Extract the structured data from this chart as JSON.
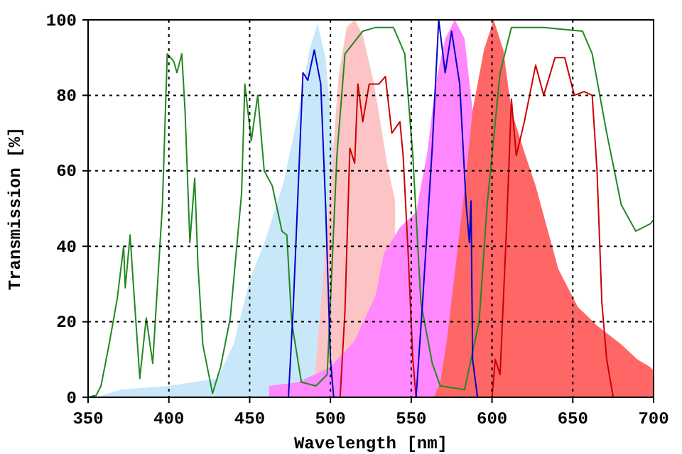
{
  "chart_data": {
    "type": "line",
    "xlabel": "Wavelength [nm]",
    "ylabel": "Transmission [%]",
    "xlim": [
      350,
      700
    ],
    "ylim": [
      0,
      100
    ],
    "xticks": [
      350,
      400,
      450,
      500,
      550,
      600,
      650,
      700
    ],
    "yticks": [
      0,
      20,
      40,
      60,
      80,
      100
    ],
    "grid": true,
    "series": [
      {
        "type": "area",
        "color": "#c8e8fa",
        "x": [
          355,
          370,
          400,
          430,
          440,
          450,
          460,
          471,
          480,
          487,
          492,
          497,
          502
        ],
        "values": [
          0,
          2,
          3,
          5,
          14,
          31,
          42,
          57,
          75,
          92,
          99,
          90,
          64
        ]
      },
      {
        "type": "area",
        "color": "#fcc4c4",
        "x": [
          489,
          492,
          499,
          505,
          510,
          515,
          520,
          527,
          535,
          540
        ],
        "values": [
          0,
          14,
          50,
          85,
          98,
          100,
          96,
          83,
          62,
          52
        ]
      },
      {
        "type": "area",
        "color": "#ff88ff",
        "x": [
          462,
          480,
          500,
          515,
          528,
          533,
          543,
          553,
          560,
          565,
          571,
          577,
          583,
          588
        ],
        "values": [
          3,
          4,
          8,
          15,
          27,
          38,
          45,
          49,
          65,
          83,
          95,
          100,
          95,
          76
        ]
      },
      {
        "type": "area",
        "color": "#ff6666",
        "x": [
          564,
          568,
          572,
          577,
          583,
          588,
          595,
          601,
          607,
          612,
          620,
          627,
          634,
          641,
          653,
          665,
          680,
          690,
          698,
          700
        ],
        "values": [
          0,
          4,
          15,
          33,
          55,
          76,
          92,
          100,
          92,
          76,
          65,
          56,
          45,
          34,
          24,
          19,
          14,
          10,
          8,
          7
        ]
      },
      {
        "color": "#228822",
        "x": [
          350,
          355,
          358,
          363,
          368,
          372,
          373,
          376,
          378,
          382,
          386,
          390,
          396,
          399,
          403,
          405,
          408,
          410,
          413,
          416,
          418,
          421,
          427,
          432,
          438,
          445,
          447,
          451,
          455,
          459,
          464,
          470,
          473,
          476,
          482,
          491,
          498,
          504,
          509,
          520,
          528,
          539,
          546,
          551,
          556,
          563,
          568,
          583,
          592,
          597,
          605,
          612,
          632,
          656,
          662,
          671,
          680,
          689,
          698,
          700
        ],
        "values": [
          0,
          0.5,
          3,
          14,
          26,
          40,
          29,
          43,
          30,
          5,
          21,
          9,
          51,
          91,
          89,
          86,
          91,
          76,
          41,
          58,
          35,
          14,
          1,
          8,
          21,
          54,
          83,
          68,
          80,
          60,
          56,
          44,
          43,
          20,
          4,
          3,
          6,
          64,
          91,
          97,
          98,
          98,
          91,
          64,
          25,
          9,
          3,
          2,
          20,
          51,
          86,
          98,
          98,
          97,
          91,
          70,
          51,
          44,
          46,
          47
        ]
      },
      {
        "color": "#cc0000",
        "x": [
          350,
          506,
          509,
          512,
          515,
          517,
          520,
          524,
          530,
          534,
          538,
          543,
          545,
          548,
          551,
          553,
          600,
          602,
          605,
          609,
          612,
          615,
          620,
          627,
          632,
          639,
          645,
          651,
          657,
          662,
          665,
          668,
          671,
          675,
          700
        ],
        "values": [
          0,
          0,
          23,
          66,
          62,
          83,
          73,
          83,
          83,
          85,
          70,
          73,
          64,
          39,
          10,
          0,
          0,
          10,
          6,
          45,
          79,
          64,
          73,
          88,
          80,
          90,
          90,
          80,
          81,
          80,
          60,
          25,
          10,
          0,
          0
        ]
      },
      {
        "color": "#0000cc",
        "x": [
          350,
          474,
          477,
          480,
          483,
          486,
          490,
          494,
          497,
          500,
          502,
          553,
          557,
          563,
          565,
          567,
          571,
          575,
          580,
          584,
          586,
          587,
          588,
          591,
          700
        ],
        "values": [
          0,
          0,
          24,
          55,
          86,
          84,
          92,
          83,
          51,
          10,
          0,
          0,
          25,
          66,
          83,
          100,
          86,
          97,
          83,
          51,
          41,
          52,
          10,
          0,
          0
        ]
      }
    ]
  }
}
